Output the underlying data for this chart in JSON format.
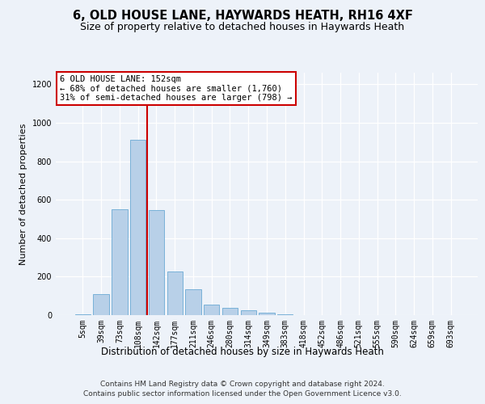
{
  "title1": "6, OLD HOUSE LANE, HAYWARDS HEATH, RH16 4XF",
  "title2": "Size of property relative to detached houses in Haywards Heath",
  "xlabel": "Distribution of detached houses by size in Haywards Heath",
  "ylabel": "Number of detached properties",
  "categories": [
    "5sqm",
    "39sqm",
    "73sqm",
    "108sqm",
    "142sqm",
    "177sqm",
    "211sqm",
    "246sqm",
    "280sqm",
    "314sqm",
    "349sqm",
    "383sqm",
    "418sqm",
    "452sqm",
    "486sqm",
    "521sqm",
    "555sqm",
    "590sqm",
    "624sqm",
    "659sqm",
    "693sqm"
  ],
  "values": [
    5,
    110,
    550,
    910,
    545,
    225,
    135,
    55,
    38,
    25,
    12,
    5,
    2,
    1,
    0,
    0,
    0,
    0,
    0,
    0,
    0
  ],
  "bar_color": "#b8d0e8",
  "bar_edgecolor": "#6aaad4",
  "vline_color": "#cc0000",
  "vline_pos": 3.5,
  "annotation_line1": "6 OLD HOUSE LANE: 152sqm",
  "annotation_line2": "← 68% of detached houses are smaller (1,760)",
  "annotation_line3": "31% of semi-detached houses are larger (798) →",
  "annot_box_edgecolor": "#cc0000",
  "annot_box_facecolor": "#ffffff",
  "ylim": [
    0,
    1260
  ],
  "yticks": [
    0,
    200,
    400,
    600,
    800,
    1000,
    1200
  ],
  "footer1": "Contains HM Land Registry data © Crown copyright and database right 2024.",
  "footer2": "Contains public sector information licensed under the Open Government Licence v3.0.",
  "bg_color": "#edf2f9",
  "grid_color": "#ffffff",
  "title1_fontsize": 10.5,
  "title2_fontsize": 9,
  "xlabel_fontsize": 8.5,
  "ylabel_fontsize": 8,
  "tick_fontsize": 7,
  "footer_fontsize": 6.5,
  "annot_fontsize": 7.5
}
